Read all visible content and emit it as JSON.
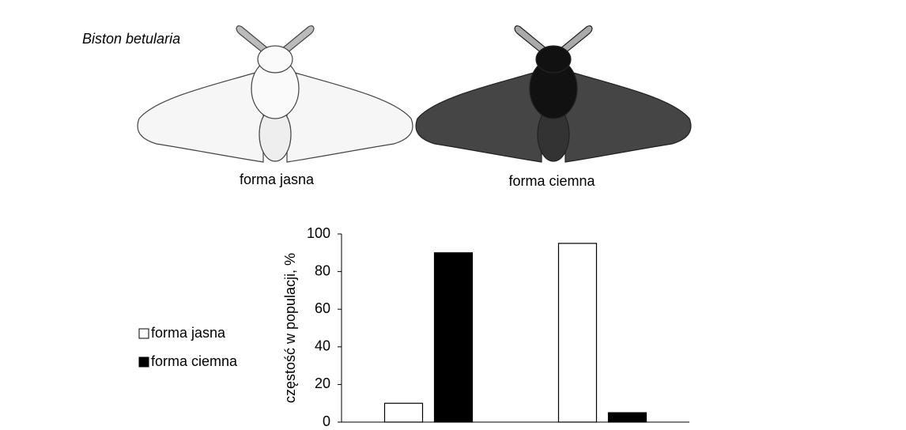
{
  "figure": {
    "species": "Biston betularia",
    "captions": [
      "forma jasna",
      "forma ciemna"
    ]
  },
  "chart_data": {
    "type": "bar",
    "ylabel": "częstość w populacji, %",
    "categories": [
      null,
      null
    ],
    "series": [
      {
        "name": "forma jasna",
        "color": "#ffffff",
        "values": [
          10,
          95
        ]
      },
      {
        "name": "forma ciemna",
        "color": "#000000",
        "values": [
          90,
          5
        ]
      }
    ],
    "ylim": [
      0,
      100
    ],
    "yticks": [
      0,
      20,
      40,
      60,
      80,
      100
    ],
    "legend": "left"
  }
}
